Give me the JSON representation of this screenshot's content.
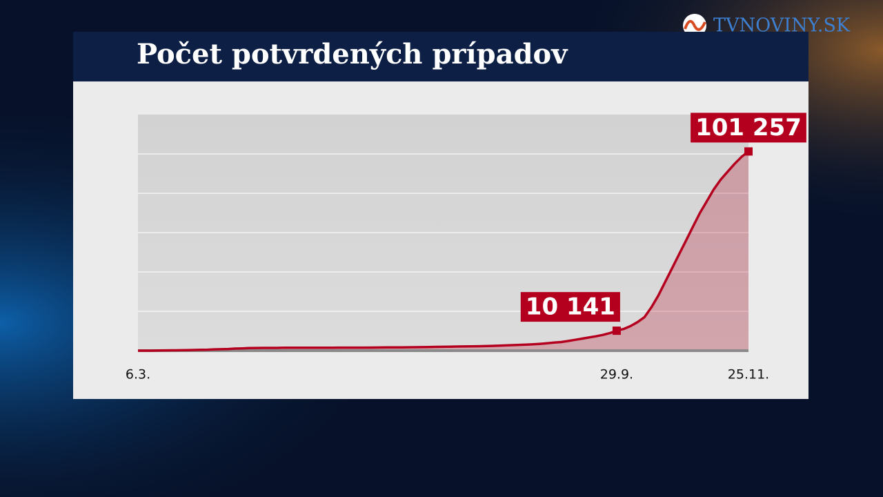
{
  "logo": "TVNOVINY.SK",
  "chart_data": {
    "type": "area",
    "title": "Počet potvrdených prípadov",
    "categories": [
      "6.3.",
      null,
      null,
      null,
      null,
      null,
      null,
      null,
      null,
      null,
      null,
      null,
      null,
      null,
      null,
      null,
      null,
      null,
      null,
      null,
      null,
      null,
      null,
      null,
      null,
      null,
      null,
      null,
      null,
      null,
      null,
      null,
      null,
      null,
      null,
      null,
      null,
      null,
      null,
      null,
      null,
      null,
      null,
      null,
      null,
      null,
      null,
      null,
      null,
      null,
      null,
      null,
      null,
      null,
      null,
      null,
      null,
      null,
      null,
      null,
      null,
      null,
      null,
      null,
      null,
      null,
      null,
      null,
      null,
      "29.9.",
      null,
      null,
      null,
      null,
      null,
      null,
      null,
      null,
      null,
      null,
      null,
      null,
      null,
      null,
      null,
      null,
      null,
      null,
      "25.11."
    ],
    "values": [
      1,
      3,
      16,
      54,
      123,
      178,
      216,
      292,
      336,
      426,
      485,
      682,
      728,
      835,
      1049,
      1173,
      1325,
      1381,
      1396,
      1408,
      1413,
      1457,
      1469,
      1480,
      1495,
      1509,
      1515,
      1521,
      1522,
      1528,
      1530,
      1531,
      1545,
      1552,
      1572,
      1602,
      1640,
      1667,
      1700,
      1720,
      1760,
      1800,
      1860,
      1930,
      1980,
      2030,
      2100,
      2150,
      2190,
      2250,
      2330,
      2420,
      2540,
      2660,
      2790,
      2930,
      3070,
      3240,
      3480,
      3800,
      4100,
      4400,
      4900,
      5500,
      6100,
      6700,
      7300,
      8000,
      8900,
      10141,
      11000,
      12500,
      14500,
      17000,
      22000,
      28000,
      35000,
      42000,
      49000,
      56000,
      63000,
      70000,
      76000,
      82000,
      87000,
      91000,
      95000,
      98500,
      101257
    ],
    "value_labels": [
      null,
      null,
      null,
      null,
      null,
      null,
      null,
      null,
      null,
      null,
      null,
      null,
      null,
      null,
      null,
      null,
      null,
      null,
      null,
      null,
      null,
      null,
      null,
      null,
      null,
      null,
      null,
      null,
      null,
      null,
      null,
      null,
      null,
      null,
      null,
      null,
      null,
      null,
      null,
      null,
      null,
      null,
      null,
      null,
      null,
      null,
      null,
      null,
      null,
      null,
      null,
      null,
      null,
      null,
      null,
      null,
      null,
      null,
      null,
      null,
      null,
      null,
      null,
      null,
      null,
      null,
      null,
      null,
      null,
      "10 141",
      null,
      null,
      null,
      null,
      null,
      null,
      null,
      null,
      null,
      null,
      null,
      null,
      null,
      null,
      null,
      null,
      null,
      null,
      "101 257"
    ],
    "color": "#b4001e",
    "ylim": [
      0,
      120000
    ],
    "yticks": [
      0,
      20000,
      40000,
      60000,
      80000,
      100000,
      120000
    ],
    "grid": true
  }
}
